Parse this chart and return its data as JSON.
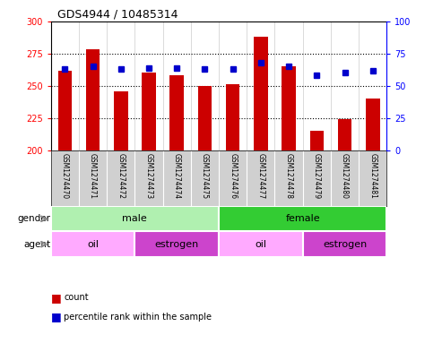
{
  "title": "GDS4944 / 10485314",
  "samples": [
    "GSM1274470",
    "GSM1274471",
    "GSM1274472",
    "GSM1274473",
    "GSM1274474",
    "GSM1274475",
    "GSM1274476",
    "GSM1274477",
    "GSM1274478",
    "GSM1274479",
    "GSM1274480",
    "GSM1274481"
  ],
  "counts": [
    262,
    278,
    246,
    260,
    258,
    250,
    251,
    288,
    265,
    215,
    224,
    240
  ],
  "percentile_ranks": [
    63,
    65,
    63,
    64,
    64,
    63,
    63,
    68,
    65,
    58,
    60,
    62
  ],
  "ylim_left": [
    200,
    300
  ],
  "ylim_right": [
    0,
    100
  ],
  "yticks_left": [
    200,
    225,
    250,
    275,
    300
  ],
  "yticks_right": [
    0,
    25,
    50,
    75,
    100
  ],
  "bar_color": "#cc0000",
  "dot_color": "#0000cc",
  "bar_width": 0.5,
  "background_main": "#ffffff",
  "label_gray_bg": "#d0d0d0",
  "gender_male_color": "#b0f0b0",
  "gender_female_color": "#33cc33",
  "agent_oil_color": "#ffaaff",
  "agent_estrogen_color": "#cc44cc",
  "legend_count_color": "#cc0000",
  "legend_percentile_color": "#0000cc",
  "grid_dotted_color": "#000000",
  "spine_color": "#000000"
}
